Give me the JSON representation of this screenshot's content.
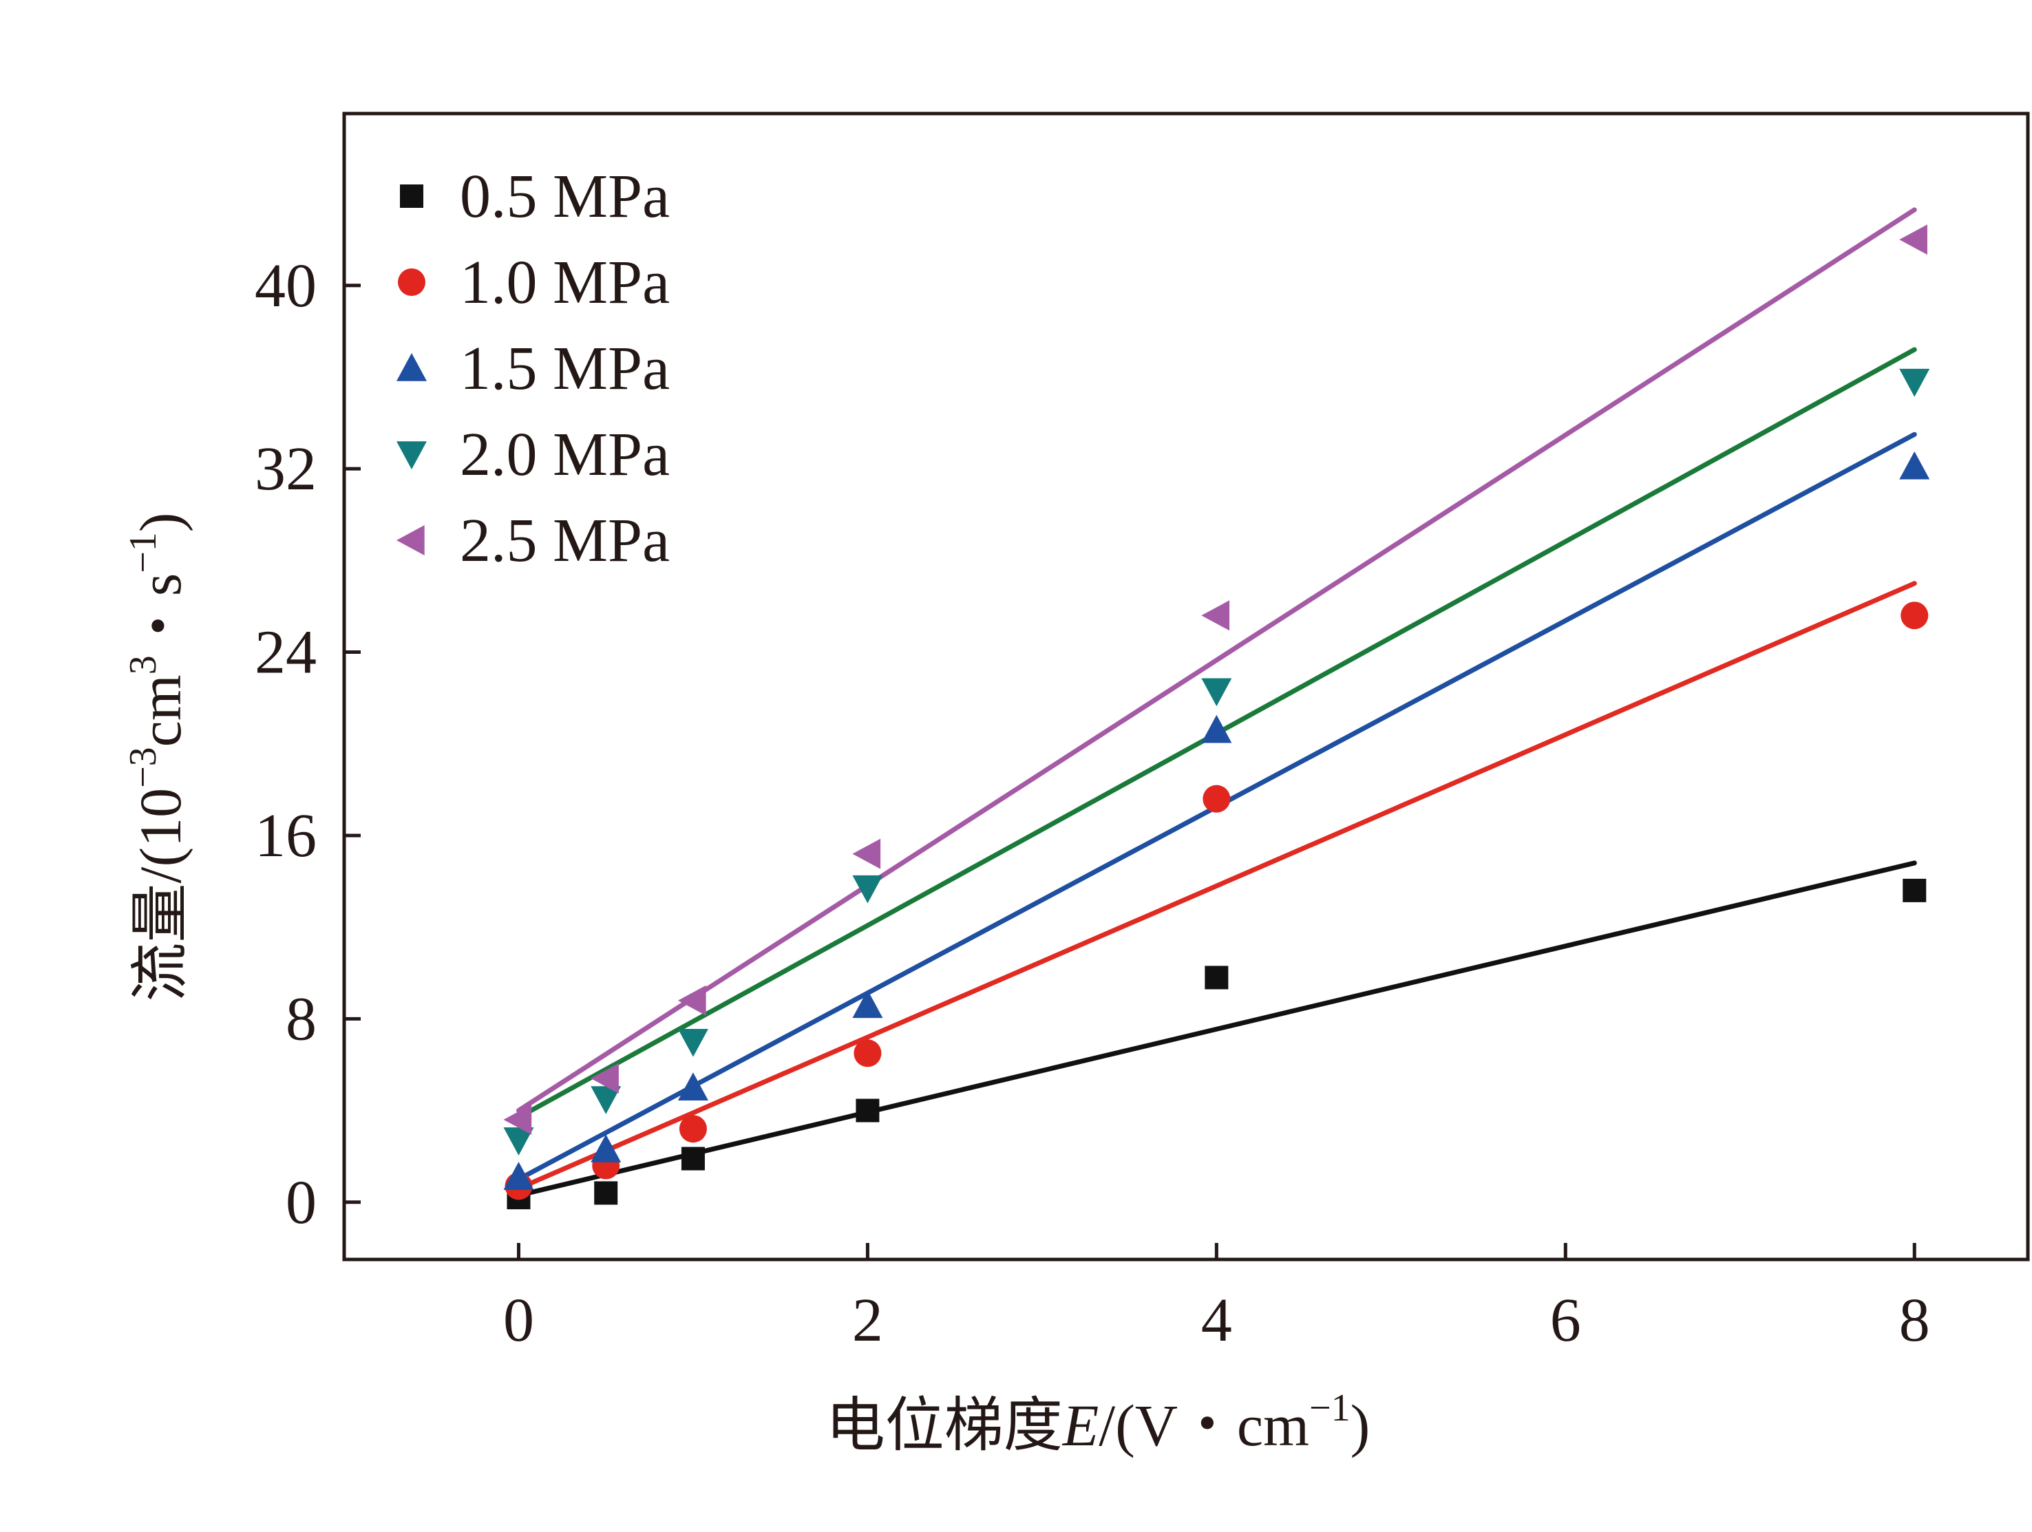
{
  "chart_data": {
    "type": "scatter",
    "xlabel": "电位梯度E/(V・cm⁻¹)",
    "xlabel_parts": {
      "prefix": "电位梯度",
      "var": "E",
      "unit_open": "/(V・cm",
      "unit_exp": "−1",
      "unit_close": ")"
    },
    "ylabel": "流量/(10⁻³cm³・s⁻¹)",
    "ylabel_parts": {
      "prefix": "流量/(10",
      "exp1": "−3",
      "mid": "cm",
      "exp2": "3",
      "mid2": "・s",
      "exp3": "−1",
      "close": ")"
    },
    "xlim": [
      -1,
      8.65
    ],
    "ylim": [
      -2.5,
      47.5
    ],
    "x_ticks": [
      0,
      2,
      4,
      6,
      8
    ],
    "y_ticks": [
      0,
      8,
      16,
      24,
      32,
      40
    ],
    "x_tick_labels": [
      "0",
      "2",
      "4",
      "6",
      "8"
    ],
    "y_tick_labels": [
      "0",
      "8",
      "16",
      "24",
      "32",
      "40"
    ],
    "legend_position": "top-left",
    "grid": false,
    "x": [
      0,
      0.5,
      1,
      2,
      4,
      8
    ],
    "series": [
      {
        "name": "0.5 MPa",
        "marker": "square",
        "color": "#111111",
        "line_color": "#111111",
        "values": [
          0.2,
          0.4,
          1.9,
          4.0,
          9.8,
          13.6
        ],
        "fit": [
          0.3,
          14.8
        ]
      },
      {
        "name": "1.0 MPa",
        "marker": "circle",
        "color": "#e0261f",
        "line_color": "#e02a22",
        "values": [
          0.7,
          1.6,
          3.2,
          6.5,
          17.6,
          25.6
        ],
        "fit": [
          0.6,
          27.0
        ]
      },
      {
        "name": "1.5 MPa",
        "marker": "triangle-up",
        "color": "#1f4fa0",
        "line_color": "#1f4fa0",
        "values": [
          1.1,
          2.3,
          5.0,
          8.6,
          20.6,
          32.1
        ],
        "fit": [
          1.0,
          33.5
        ]
      },
      {
        "name": "2.0 MPa",
        "marker": "triangle-down",
        "color": "#137b7b",
        "line_color": "#1a7a3a",
        "values": [
          2.7,
          4.5,
          7.0,
          13.7,
          22.3,
          35.8
        ],
        "fit": [
          3.7,
          37.2
        ]
      },
      {
        "name": "2.5 MPa",
        "marker": "triangle-left",
        "color": "#a55aa6",
        "line_color": "#a55aa6",
        "values": [
          3.6,
          5.4,
          8.8,
          15.2,
          25.6,
          42.0
        ],
        "fit": [
          4.0,
          43.3
        ]
      }
    ]
  }
}
